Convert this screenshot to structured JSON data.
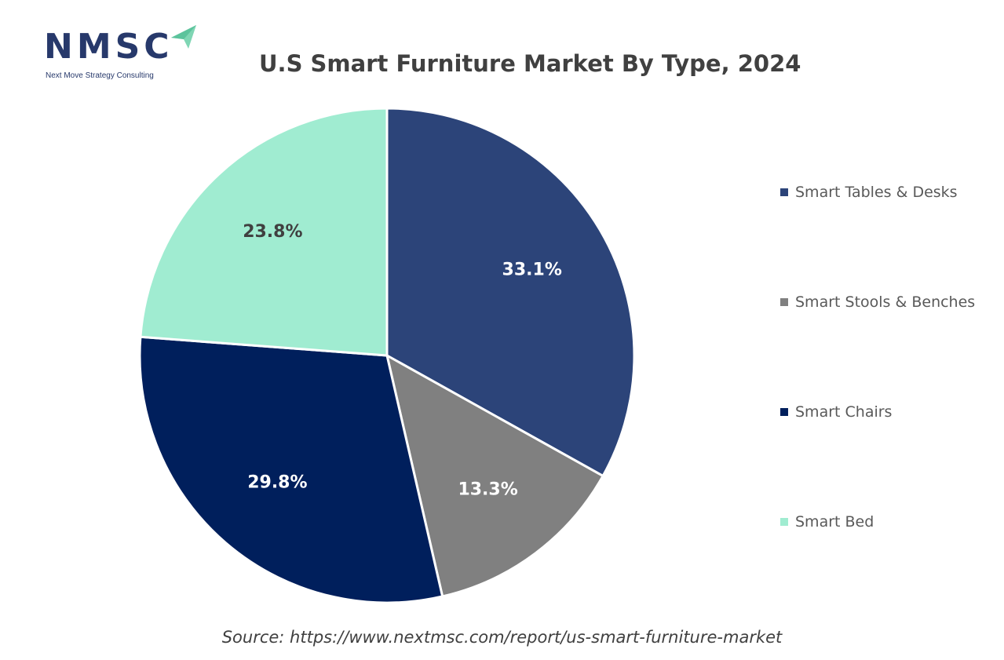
{
  "logo": {
    "text": "NMSC",
    "subtitle": "Next Move Strategy Consulting"
  },
  "chart_data": {
    "type": "pie",
    "title": "U.S Smart Furniture Market By Type, 2024",
    "slices": [
      {
        "label": "Smart Tables & Desks",
        "value": 33.1,
        "display": "33.1%",
        "color": "#2c4479",
        "label_color": "#ffffff"
      },
      {
        "label": "Smart Stools & Benches",
        "value": 13.3,
        "display": "13.3%",
        "color": "#808080",
        "label_color": "#ffffff"
      },
      {
        "label": "Smart Chairs",
        "value": 29.8,
        "display": "29.8%",
        "color": "#001f5c",
        "label_color": "#ffffff"
      },
      {
        "label": "Smart Bed",
        "value": 23.8,
        "display": "23.8%",
        "color": "#a0ecd1",
        "label_color": "#404040"
      }
    ],
    "start_angle_deg": 0,
    "direction": "clockwise",
    "legend_position": "right"
  },
  "source": "Source: https://www.nextmsc.com/report/us-smart-furniture-market"
}
